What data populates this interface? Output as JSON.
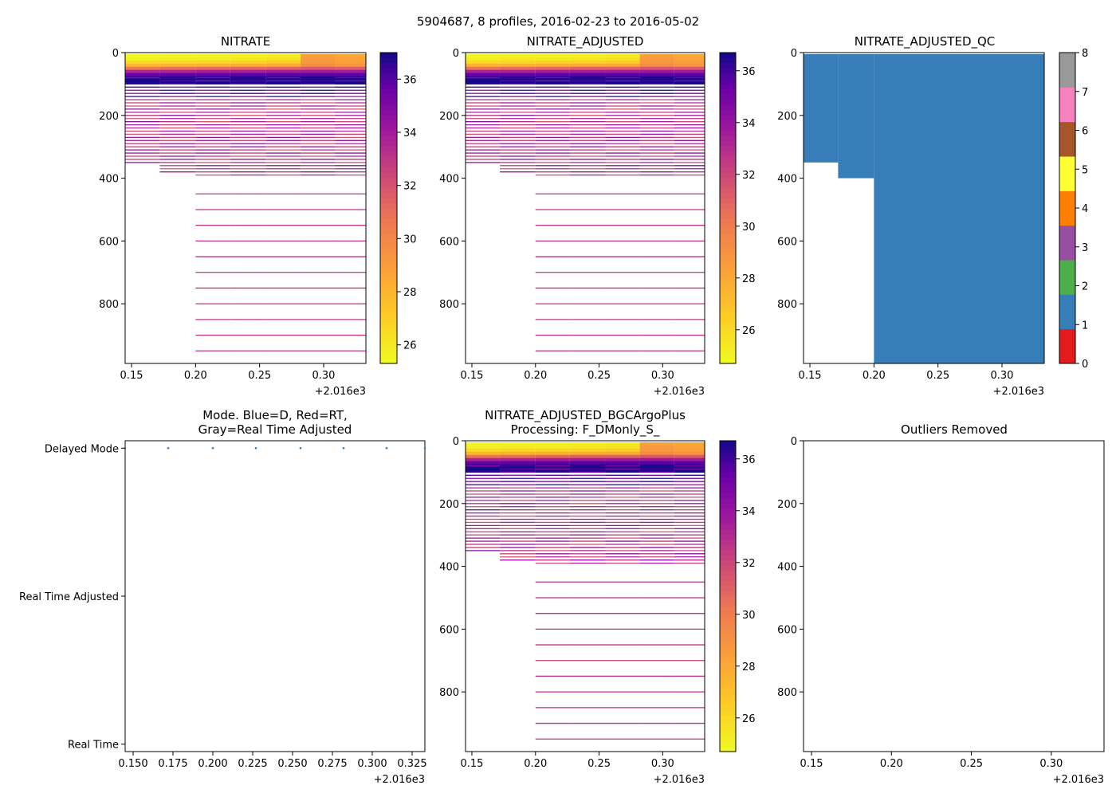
{
  "figure_title": "5904687, 8 profiles, 2016-02-23 to 2016-05-02",
  "colors": {
    "dm_marker": "#377eb8",
    "axis": "#000000",
    "qc_good": "#377eb8"
  },
  "chart_data": [
    {
      "id": "nitrate",
      "type": "heatmap",
      "title": "NITRATE",
      "xlim": [
        2016.145,
        2016.333
      ],
      "x_ticks": [
        0.15,
        0.2,
        0.25,
        0.3
      ],
      "x_tick_labels": [
        "0.15",
        "0.20",
        "0.25",
        "0.30"
      ],
      "x_offset_label": "+2.016e3",
      "ylim": [
        0,
        990
      ],
      "y_inverted": true,
      "y_ticks": [
        0,
        200,
        400,
        600,
        800
      ],
      "y_tick_labels": [
        "0",
        "200",
        "400",
        "600",
        "800"
      ],
      "colorbar": {
        "cmap": "plasma_r",
        "range": [
          25.3,
          37.0
        ],
        "ticks": [
          26,
          28,
          30,
          32,
          34,
          36
        ],
        "tick_labels": [
          "26",
          "28",
          "30",
          "32",
          "34",
          "36"
        ]
      },
      "profile_x": [
        2016.145,
        2016.172,
        2016.2,
        2016.227,
        2016.255,
        2016.282,
        2016.309,
        2016.333
      ],
      "profile_max_depth": [
        350,
        385,
        990,
        990,
        990,
        990,
        990,
        990
      ],
      "shallow_depth_step": 5,
      "shallow_profile": [
        [
          25.4,
          25.6,
          26.4,
          27.8,
          30.5,
          33.5,
          35.6,
          36.5,
          36.8
        ],
        [
          25.5,
          25.8,
          26.5,
          27.9,
          30.8,
          33.6,
          35.7,
          36.5,
          36.8
        ],
        [
          25.5,
          25.7,
          26.6,
          28.0,
          31.0,
          33.8,
          35.7,
          36.6,
          36.8
        ],
        [
          25.6,
          25.9,
          26.7,
          28.2,
          31.2,
          33.8,
          35.8,
          36.6,
          36.8
        ],
        [
          25.8,
          26.1,
          26.9,
          28.3,
          31.3,
          33.9,
          35.8,
          36.6,
          36.8
        ],
        [
          28.8,
          29.0,
          29.2,
          29.6,
          31.6,
          34.0,
          35.8,
          36.6,
          36.8
        ],
        [
          28.6,
          28.6,
          28.8,
          29.2,
          31.5,
          33.9,
          35.8,
          36.6,
          36.8
        ],
        [
          28.9,
          29.0,
          29.2,
          29.5,
          31.6,
          34.0,
          35.8,
          36.6,
          36.8
        ]
      ],
      "mid_depth_step": 10,
      "mid_value": 33.3,
      "deep_depths": [
        450,
        500,
        550,
        600,
        650,
        700,
        750,
        800,
        850,
        900,
        950
      ],
      "deep_value": 32.9
    },
    {
      "id": "nitrate_adjusted",
      "type": "heatmap",
      "title": "NITRATE_ADJUSTED",
      "xlim": [
        2016.145,
        2016.333
      ],
      "x_ticks": [
        0.15,
        0.2,
        0.25,
        0.3
      ],
      "x_tick_labels": [
        "0.15",
        "0.20",
        "0.25",
        "0.30"
      ],
      "x_offset_label": "+2.016e3",
      "ylim": [
        0,
        990
      ],
      "y_inverted": true,
      "y_ticks": [
        0,
        200,
        400,
        600,
        800
      ],
      "y_tick_labels": [
        "0",
        "200",
        "400",
        "600",
        "800"
      ],
      "colorbar": {
        "cmap": "plasma_r",
        "range": [
          24.7,
          36.7
        ],
        "ticks": [
          26,
          28,
          30,
          32,
          34,
          36
        ],
        "tick_labels": [
          "26",
          "28",
          "30",
          "32",
          "34",
          "36"
        ]
      },
      "profile_x": [
        2016.145,
        2016.172,
        2016.2,
        2016.227,
        2016.255,
        2016.282,
        2016.309,
        2016.333
      ],
      "profile_max_depth": [
        350,
        385,
        990,
        990,
        990,
        990,
        990,
        990
      ],
      "shallow_depth_step": 5,
      "shallow_profile": [
        [
          24.9,
          25.1,
          25.9,
          27.4,
          30.2,
          33.2,
          35.3,
          36.2,
          36.5
        ],
        [
          25.0,
          25.3,
          26.0,
          27.5,
          30.5,
          33.3,
          35.4,
          36.2,
          36.5
        ],
        [
          25.0,
          25.2,
          26.1,
          27.6,
          30.7,
          33.5,
          35.4,
          36.3,
          36.5
        ],
        [
          25.1,
          25.4,
          26.2,
          27.8,
          30.9,
          33.5,
          35.5,
          36.3,
          36.5
        ],
        [
          25.3,
          25.6,
          26.4,
          27.9,
          31.0,
          33.6,
          35.5,
          36.3,
          36.5
        ],
        [
          28.3,
          28.5,
          28.7,
          29.1,
          31.3,
          33.7,
          35.5,
          36.3,
          36.5
        ],
        [
          28.1,
          28.1,
          28.3,
          28.8,
          31.2,
          33.6,
          35.5,
          36.3,
          36.5
        ],
        [
          28.4,
          28.5,
          28.7,
          29.1,
          31.3,
          33.7,
          35.5,
          36.3,
          36.5
        ]
      ],
      "mid_depth_step": 10,
      "mid_value": 33.0,
      "deep_depths": [
        450,
        500,
        550,
        600,
        650,
        700,
        750,
        800,
        850,
        900,
        950
      ],
      "deep_value": 32.6
    },
    {
      "id": "nitrate_adjusted_qc",
      "type": "heatmap",
      "title": "NITRATE_ADJUSTED_QC",
      "xlim": [
        2016.145,
        2016.333
      ],
      "x_ticks": [
        0.15,
        0.2,
        0.25,
        0.3
      ],
      "x_tick_labels": [
        "0.15",
        "0.20",
        "0.25",
        "0.30"
      ],
      "x_offset_label": "+2.016e3",
      "ylim": [
        0,
        990
      ],
      "y_inverted": true,
      "y_ticks": [
        0,
        200,
        400,
        600,
        800
      ],
      "y_tick_labels": [
        "0",
        "200",
        "400",
        "600",
        "800"
      ],
      "qc_regions": [
        {
          "x_range": [
            2016.145,
            2016.172
          ],
          "depth_range": [
            5,
            350
          ],
          "qc": 1
        },
        {
          "x_range": [
            2016.172,
            2016.2
          ],
          "depth_range": [
            5,
            400
          ],
          "qc": 1
        },
        {
          "x_range": [
            2016.2,
            2016.333
          ],
          "depth_range": [
            5,
            990
          ],
          "qc": 1
        }
      ],
      "colorbar": {
        "type": "categorical",
        "range": [
          0,
          8
        ],
        "colors": [
          "#e41a1c",
          "#377eb8",
          "#4daf4a",
          "#984ea3",
          "#ff7f00",
          "#ffff33",
          "#a65628",
          "#f781bf",
          "#999999"
        ],
        "ticks": [
          0,
          1,
          2,
          3,
          4,
          5,
          6,
          7,
          8
        ],
        "tick_labels": [
          "0",
          "1",
          "2",
          "3",
          "4",
          "5",
          "6",
          "7",
          "8"
        ]
      }
    },
    {
      "id": "mode",
      "type": "scatter",
      "title": "Mode. Blue=D, Red=RT,",
      "title_line2": "Gray=Real Time Adjusted",
      "xlim": [
        2016.145,
        2016.333
      ],
      "x_ticks": [
        0.15,
        0.175,
        0.2,
        0.225,
        0.25,
        0.275,
        0.3,
        0.325
      ],
      "x_tick_labels": [
        "0.150",
        "0.175",
        "0.200",
        "0.225",
        "0.250",
        "0.275",
        "0.300",
        "0.325"
      ],
      "x_offset_label": "+2.016e3",
      "y_categories": [
        "Delayed Mode",
        "Real Time Adjusted",
        "Real Time"
      ],
      "y_category_values": [
        2,
        1,
        0
      ],
      "ylim": [
        -0.05,
        2.05
      ],
      "x": [
        2016.145,
        2016.172,
        2016.2,
        2016.227,
        2016.255,
        2016.282,
        2016.309,
        2016.333
      ],
      "y": [
        2,
        2,
        2,
        2,
        2,
        2,
        2,
        2
      ]
    },
    {
      "id": "bgc_argo_plus",
      "type": "heatmap",
      "title": "NITRATE_ADJUSTED_BGCArgoPlus",
      "title_line2": "Processing: F_DMonly_S_",
      "xlim": [
        2016.145,
        2016.333
      ],
      "x_ticks": [
        0.15,
        0.2,
        0.25,
        0.3
      ],
      "x_tick_labels": [
        "0.15",
        "0.20",
        "0.25",
        "0.30"
      ],
      "x_offset_label": "+2.016e3",
      "ylim": [
        0,
        990
      ],
      "y_inverted": true,
      "y_ticks": [
        0,
        200,
        400,
        600,
        800
      ],
      "y_tick_labels": [
        "0",
        "200",
        "400",
        "600",
        "800"
      ],
      "colorbar": {
        "cmap": "plasma_r",
        "range": [
          24.7,
          36.7
        ],
        "ticks": [
          26,
          28,
          30,
          32,
          34,
          36
        ],
        "tick_labels": [
          "26",
          "28",
          "30",
          "32",
          "34",
          "36"
        ]
      },
      "profile_x": [
        2016.145,
        2016.172,
        2016.2,
        2016.227,
        2016.255,
        2016.282,
        2016.309,
        2016.333
      ],
      "profile_max_depth": [
        350,
        385,
        990,
        990,
        990,
        990,
        990,
        990
      ],
      "shallow_depth_step": 5,
      "shallow_profile": [
        [
          24.9,
          25.1,
          25.9,
          27.4,
          30.2,
          33.2,
          35.3,
          36.2,
          36.5
        ],
        [
          25.0,
          25.3,
          26.0,
          27.5,
          30.5,
          33.3,
          35.4,
          36.2,
          36.5
        ],
        [
          25.0,
          25.2,
          26.1,
          27.6,
          30.7,
          33.5,
          35.4,
          36.3,
          36.5
        ],
        [
          25.1,
          25.4,
          26.2,
          27.8,
          30.9,
          33.5,
          35.5,
          36.3,
          36.5
        ],
        [
          25.3,
          25.6,
          26.4,
          27.9,
          31.0,
          33.6,
          35.5,
          36.3,
          36.5
        ],
        [
          28.3,
          28.5,
          28.7,
          29.1,
          31.3,
          33.7,
          35.5,
          36.3,
          36.5
        ],
        [
          28.1,
          28.1,
          28.3,
          28.8,
          31.2,
          33.6,
          35.5,
          36.3,
          36.5
        ],
        [
          28.4,
          28.5,
          28.7,
          29.1,
          31.3,
          33.7,
          35.5,
          36.3,
          36.5
        ]
      ],
      "mid_depth_step": 10,
      "mid_value": 33.0,
      "deep_depths": [
        450,
        500,
        550,
        600,
        650,
        700,
        750,
        800,
        850,
        900,
        950
      ],
      "deep_value": 32.6
    },
    {
      "id": "outliers",
      "type": "scatter",
      "title": "Outliers Removed",
      "xlim": [
        2016.145,
        2016.333
      ],
      "x_ticks": [
        0.15,
        0.2,
        0.25,
        0.3
      ],
      "x_tick_labels": [
        "0.15",
        "0.20",
        "0.25",
        "0.30"
      ],
      "x_offset_label": "+2.016e3",
      "ylim": [
        0,
        990
      ],
      "y_inverted": true,
      "y_ticks": [
        0,
        200,
        400,
        600,
        800
      ],
      "y_tick_labels": [
        "0",
        "200",
        "400",
        "600",
        "800"
      ],
      "x": [],
      "y": []
    }
  ]
}
